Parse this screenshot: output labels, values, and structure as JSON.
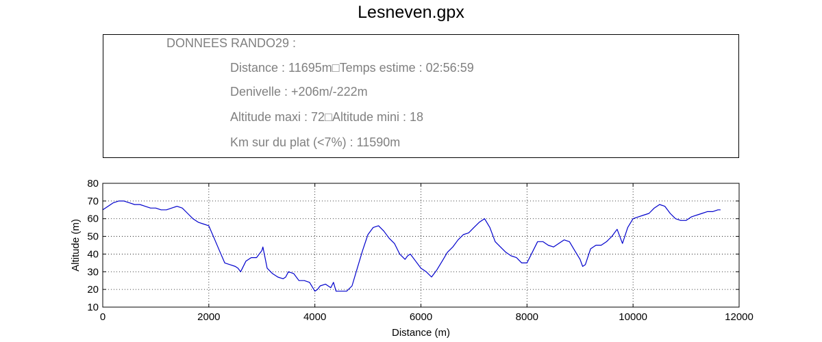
{
  "title": "Lesneven.gpx",
  "info": {
    "header": "DONNEES RANDO29  :",
    "distance": "Distance : 11695m□Temps estime : 02:56:59",
    "denivelle": "Denivelle : +206m/-222m",
    "altitude": "Altitude maxi : 72□Altitude mini : 18",
    "plat": "Km sur du plat (<7%) : 11590m"
  },
  "chart_data": {
    "type": "line",
    "title": "",
    "xlabel": "Distance (m)",
    "ylabel": "Altitude (m)",
    "xlim": [
      0,
      12000
    ],
    "ylim": [
      10,
      80
    ],
    "xticks": [
      0,
      2000,
      4000,
      6000,
      8000,
      10000,
      12000
    ],
    "yticks": [
      10,
      20,
      30,
      40,
      50,
      60,
      70,
      80
    ],
    "grid": true,
    "line_color": "#0000cc",
    "series": [
      {
        "x": [
          0,
          100,
          200,
          300,
          400,
          500,
          600,
          700,
          800,
          900,
          1000,
          1100,
          1200,
          1300,
          1400,
          1500,
          1600,
          1700,
          1800,
          1900,
          2000,
          2100,
          2200,
          2300,
          2400,
          2500,
          2550,
          2600,
          2700,
          2800,
          2900,
          3000,
          3020,
          3100,
          3200,
          3300,
          3400,
          3450,
          3500,
          3600,
          3700,
          3800,
          3900,
          4000,
          4050,
          4100,
          4200,
          4300,
          4350,
          4400,
          4500,
          4600,
          4700,
          4800,
          4900,
          5000,
          5100,
          5200,
          5300,
          5400,
          5500,
          5600,
          5700,
          5750,
          5800,
          5900,
          6000,
          6100,
          6200,
          6300,
          6400,
          6500,
          6600,
          6700,
          6800,
          6900,
          7000,
          7100,
          7200,
          7300,
          7400,
          7500,
          7600,
          7700,
          7800,
          7900,
          8000,
          8100,
          8200,
          8300,
          8400,
          8500,
          8600,
          8700,
          8800,
          8900,
          9000,
          9050,
          9100,
          9200,
          9300,
          9400,
          9500,
          9600,
          9700,
          9800,
          9900,
          10000,
          10100,
          10200,
          10300,
          10400,
          10500,
          10600,
          10700,
          10800,
          10900,
          11000,
          11100,
          11200,
          11300,
          11400,
          11500,
          11600,
          11650
        ],
        "y": [
          65,
          67,
          69,
          70,
          70,
          69,
          68,
          68,
          67,
          66,
          66,
          65,
          65,
          66,
          67,
          66,
          63,
          60,
          58,
          57,
          56,
          49,
          42,
          35,
          34,
          33,
          32,
          30,
          36,
          38,
          38,
          42,
          44,
          32,
          29,
          27,
          26,
          27,
          30,
          29,
          25,
          25,
          24,
          19,
          20,
          22,
          23,
          21,
          24,
          19,
          19,
          19,
          22,
          32,
          42,
          51,
          55,
          56,
          53,
          49,
          46,
          40,
          37,
          39,
          40,
          36,
          32,
          30,
          27,
          31,
          36,
          41,
          44,
          48,
          51,
          52,
          55,
          58,
          60,
          55,
          47,
          44,
          41,
          39,
          38,
          35,
          35,
          41,
          47,
          47,
          45,
          44,
          46,
          48,
          47,
          42,
          37,
          33,
          34,
          43,
          45,
          45,
          47,
          50,
          54,
          46,
          55,
          60,
          61,
          62,
          63,
          66,
          68,
          67,
          63,
          60,
          59,
          59,
          61,
          62,
          63,
          64,
          64,
          65,
          65
        ]
      }
    ]
  }
}
